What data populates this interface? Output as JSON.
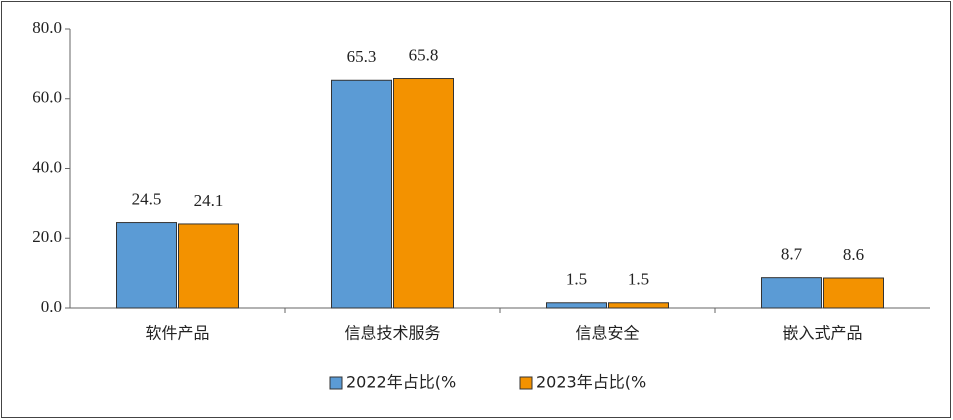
{
  "chart_data": {
    "type": "bar",
    "categories": [
      "软件产品",
      "信息技术服务",
      "信息安全",
      "嵌入式产品"
    ],
    "series": [
      {
        "name": "2022年占比(%",
        "color": "#5b9bd5",
        "values": [
          24.5,
          65.3,
          1.5,
          8.7
        ]
      },
      {
        "name": "2023年占比(%",
        "color": "#f39200",
        "values": [
          24.1,
          65.8,
          1.5,
          8.6
        ]
      }
    ],
    "ylim": [
      0,
      80
    ],
    "yticks": [
      {
        "value": 0,
        "label": "0.0"
      },
      {
        "value": 20,
        "label": "20.0"
      },
      {
        "value": 40,
        "label": "40.0"
      },
      {
        "value": 60,
        "label": "60.0"
      },
      {
        "value": 80,
        "label": "80.0"
      }
    ],
    "legend": "bottom"
  }
}
